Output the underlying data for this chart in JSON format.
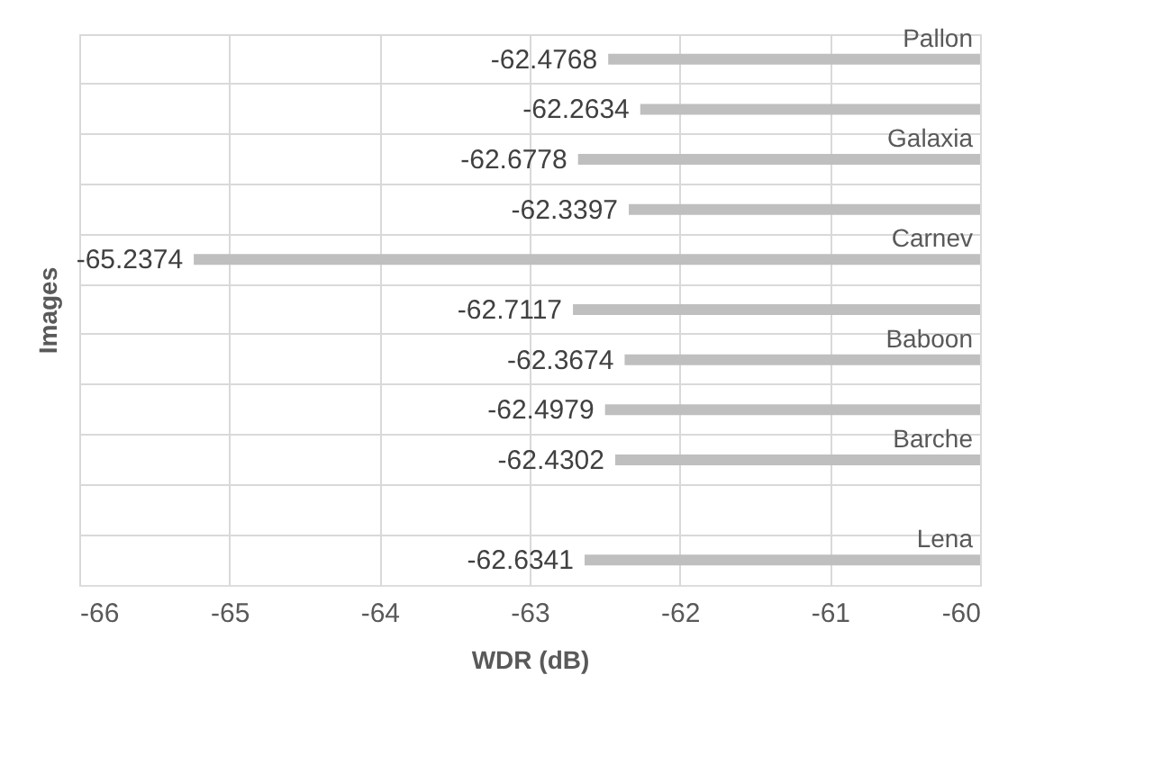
{
  "chart_data": {
    "type": "bar",
    "orientation": "horizontal",
    "xlabel": "WDR (dB)",
    "ylabel": "Images",
    "categories": [
      "Pallon",
      null,
      "Galaxia",
      null,
      "Carnev",
      null,
      "Baboon",
      null,
      "Barche",
      null,
      "Lena"
    ],
    "values": [
      -62.4768,
      -62.2634,
      -62.6778,
      -62.3397,
      -65.2374,
      -62.7117,
      -62.3674,
      -62.4979,
      -62.4302,
      null,
      -62.6341
    ],
    "color": "#bfbfbf",
    "xlim": [
      -66,
      -60
    ],
    "xticks": [
      -66,
      -65,
      -64,
      -63,
      -62,
      -61,
      -60
    ],
    "data_labels": true,
    "grid": true,
    "tick_labels": "x"
  }
}
